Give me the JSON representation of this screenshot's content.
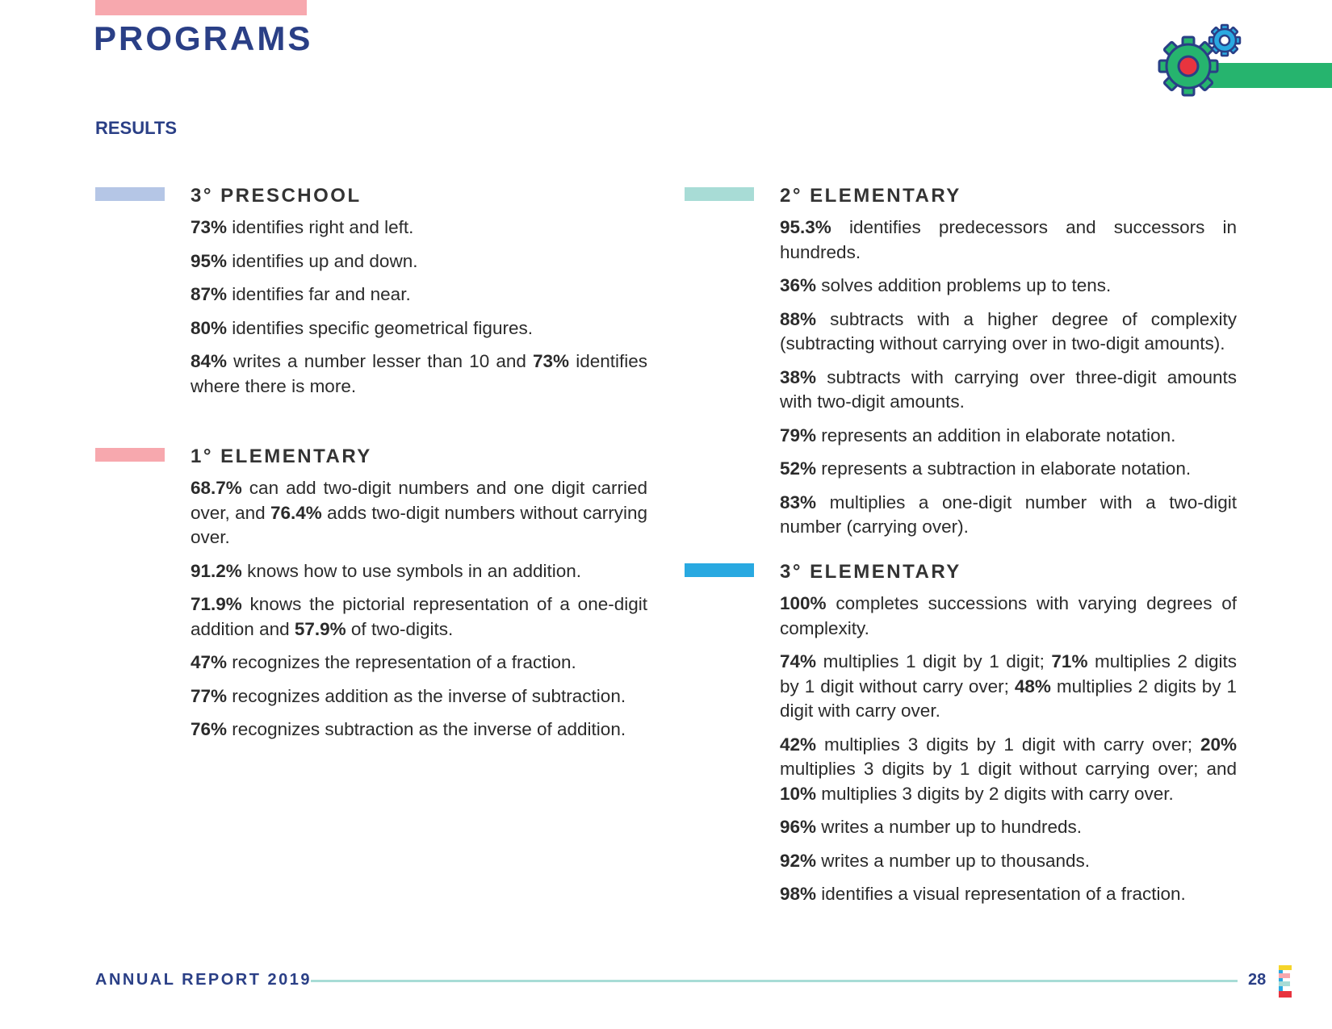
{
  "header": {
    "title": "PROGRAMS",
    "subtitle": "RESULTS"
  },
  "sections": [
    {
      "heading": "3° PRESCHOOL",
      "items": [
        [
          "73%",
          " identifies right and left."
        ],
        [
          "95%",
          " identifies up and down."
        ],
        [
          "87%",
          " identifies far and near."
        ],
        [
          "80%",
          " identifies specific geometrical figures."
        ],
        [
          "84%",
          " writes a number lesser than 10 and ",
          "73%",
          " identifies where there is more."
        ]
      ]
    },
    {
      "heading": "1° ELEMENTARY",
      "items": [
        [
          "68.7%",
          " can add two-digit numbers and one digit carried over, and ",
          "76.4%",
          " adds two-digit numbers without carrying over."
        ],
        [
          "91.2%",
          " knows how to use symbols in an addition."
        ],
        [
          "71.9%",
          " knows the pictorial representation of a one-digit addition and ",
          "57.9%",
          " of two-digits."
        ],
        [
          "47%",
          " recognizes the representation of a fraction."
        ],
        [
          "77%",
          " recognizes addition as the inverse of subtraction."
        ],
        [
          "76%",
          " recognizes subtraction as the inverse of addition."
        ]
      ]
    },
    {
      "heading": "2° ELEMENTARY",
      "items": [
        [
          "95.3%",
          " identifies predecessors and successors in hundreds."
        ],
        [
          "36%",
          " solves addition problems up to tens."
        ],
        [
          "88%",
          " subtracts with a higher degree of complexity (subtracting without carrying over in two-digit amounts)."
        ],
        [
          "38%",
          " subtracts with carrying over three-digit amounts with two-digit amounts."
        ],
        [
          "79%",
          " represents an addition in elaborate notation."
        ],
        [
          "52%",
          " represents a subtraction in elaborate notation."
        ],
        [
          "83%",
          " multiplies a one-digit number with a two-digit number (carrying over)."
        ]
      ]
    },
    {
      "heading": "3° ELEMENTARY",
      "items": [
        [
          "100%",
          " completes successions with varying degrees of complexity."
        ],
        [
          "74%",
          " multiplies 1 digit by 1 digit; ",
          "71%",
          " multiplies 2 digits by 1 digit without carry over; ",
          "48%",
          " multiplies 2 digits by 1 digit with carry over."
        ],
        [
          "42%",
          " multiplies 3 digits by 1 digit with carry over; ",
          "20%",
          " multiplies 3 digits by 1 digit without carrying over; and ",
          "10%",
          " multiplies 3 digits by 2 digits with carry over."
        ],
        [
          "96%",
          " writes a number up to hundreds."
        ],
        [
          "92%",
          " writes a number up to thousands."
        ],
        [
          "98%",
          " identifies a visual representation of a fraction."
        ]
      ]
    }
  ],
  "footer": {
    "report": "ANNUAL REPORT 2019",
    "page": "28"
  }
}
